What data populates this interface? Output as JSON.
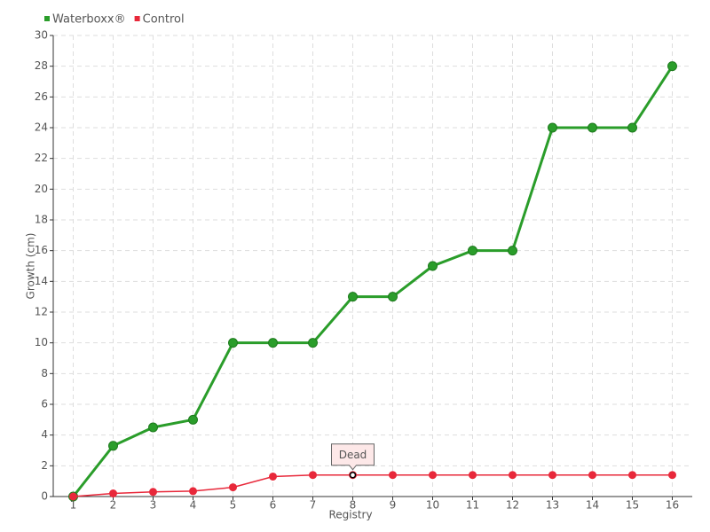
{
  "chart_data": {
    "type": "line",
    "x_label": "Registry",
    "y_label": "Growth (cm)",
    "x": [
      1,
      2,
      3,
      4,
      5,
      6,
      7,
      8,
      9,
      10,
      11,
      12,
      13,
      14,
      15,
      16
    ],
    "xlim": [
      0.5,
      16.5
    ],
    "xticks": [
      1,
      2,
      3,
      4,
      5,
      6,
      7,
      8,
      9,
      10,
      11,
      12,
      13,
      14,
      15,
      16
    ],
    "ylim": [
      0,
      30
    ],
    "yticks": [
      0,
      2,
      4,
      6,
      8,
      10,
      12,
      14,
      16,
      18,
      20,
      22,
      24,
      26,
      28,
      30
    ],
    "grid": true,
    "legend": "top-left",
    "series": [
      {
        "name": "Waterboxx®",
        "color": "#2a9d2a",
        "values": [
          0,
          3.3,
          4.5,
          5,
          10,
          10,
          10,
          13,
          13,
          15,
          16,
          16,
          24,
          24,
          24,
          28
        ]
      },
      {
        "name": "Control",
        "color": "#e8283a",
        "values": [
          0,
          0.2,
          0.3,
          0.35,
          0.6,
          1.3,
          1.4,
          1.4,
          1.4,
          1.4,
          1.4,
          1.4,
          1.4,
          1.4,
          1.4,
          1.4
        ]
      }
    ],
    "annotations": [
      {
        "text": "Dead",
        "x": 8,
        "y": 1.4
      }
    ]
  }
}
